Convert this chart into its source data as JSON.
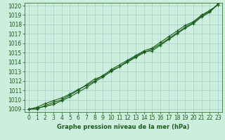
{
  "x": [
    0,
    1,
    2,
    3,
    4,
    5,
    6,
    7,
    8,
    9,
    10,
    11,
    12,
    13,
    14,
    15,
    16,
    17,
    18,
    19,
    20,
    21,
    22,
    23
  ],
  "line1": [
    1009.0,
    1009.1,
    1009.3,
    1009.5,
    1009.9,
    1010.3,
    1010.8,
    1011.3,
    1011.9,
    1012.4,
    1013.0,
    1013.5,
    1014.1,
    1014.6,
    1015.1,
    1015.2,
    1015.8,
    1016.4,
    1017.0,
    1017.6,
    1018.1,
    1018.8,
    1019.3,
    1020.2
  ],
  "line2": [
    1009.0,
    1009.2,
    1009.6,
    1009.9,
    1010.2,
    1010.6,
    1011.1,
    1011.5,
    1012.0,
    1012.6,
    1013.1,
    1013.5,
    1014.0,
    1014.5,
    1015.0,
    1015.4,
    1015.9,
    1016.5,
    1017.1,
    1017.7,
    1018.2,
    1018.9,
    1019.4,
    1020.1
  ],
  "line3": [
    1009.0,
    1009.0,
    1009.4,
    1009.7,
    1010.0,
    1010.5,
    1011.0,
    1011.6,
    1012.2,
    1012.5,
    1013.2,
    1013.7,
    1014.2,
    1014.7,
    1015.2,
    1015.5,
    1016.1,
    1016.7,
    1017.3,
    1017.9,
    1018.3,
    1019.0,
    1019.5,
    1020.1
  ],
  "ylim": [
    1009,
    1020
  ],
  "xlim": [
    0,
    23
  ],
  "yticks": [
    1009,
    1010,
    1011,
    1012,
    1013,
    1014,
    1015,
    1016,
    1017,
    1018,
    1019,
    1020
  ],
  "xticks": [
    0,
    1,
    2,
    3,
    4,
    5,
    6,
    7,
    8,
    9,
    10,
    11,
    12,
    13,
    14,
    15,
    16,
    17,
    18,
    19,
    20,
    21,
    22,
    23
  ],
  "line_color": "#1a5c1a",
  "bg_color": "#cceedd",
  "grid_color": "#aacccc",
  "xlabel": "Graphe pression niveau de la mer (hPa)",
  "xlabel_color": "#1a5c1a",
  "tick_color": "#1a5c1a",
  "marker": "+",
  "marker_size": 3,
  "line_width": 0.8,
  "tick_fontsize": 5.5,
  "xlabel_fontsize": 6.0
}
